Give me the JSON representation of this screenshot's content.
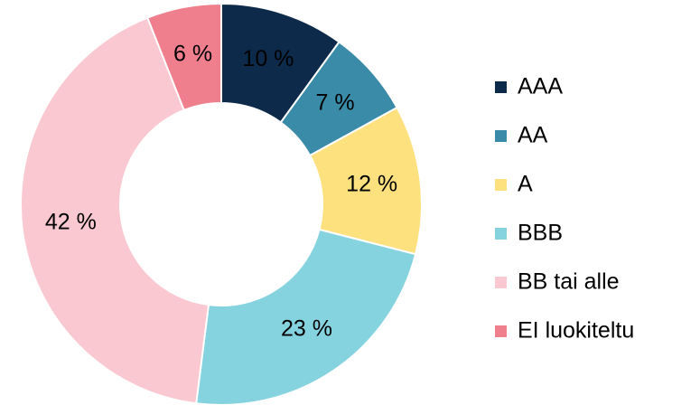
{
  "chart_data": {
    "type": "donut",
    "categories": [
      "AAA",
      "AA",
      "A",
      "BBB",
      "BB tai alle",
      "EI luokiteltu"
    ],
    "values": [
      10,
      7,
      12,
      23,
      42,
      6
    ],
    "value_labels": [
      "10 %",
      "7 %",
      "12 %",
      "23 %",
      "42 %",
      "6 %"
    ],
    "colors": [
      "#0d2a4a",
      "#3a8ba8",
      "#fde17f",
      "#86d3e0",
      "#f9c8d0",
      "#f07f8d"
    ],
    "legend": "right"
  }
}
